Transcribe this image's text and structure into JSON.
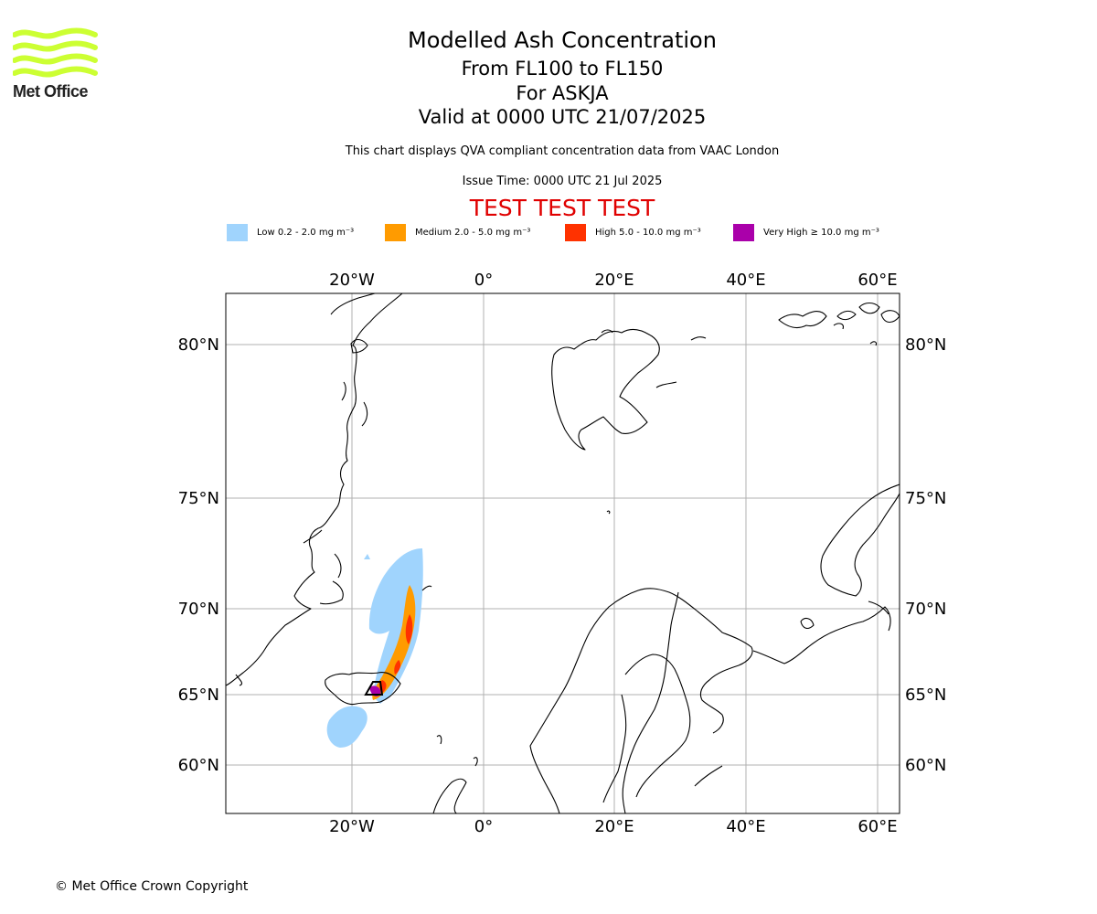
{
  "brand": {
    "name": "Met Office",
    "accent": "#ccff33"
  },
  "header": {
    "title": "Modelled Ash Concentration",
    "levels": "From FL100 to FL150",
    "volcano": "For ASKJA",
    "valid": "Valid at 0000 UTC 21/07/2025",
    "note": "This chart displays QVA compliant concentration data from VAAC London",
    "issue": "Issue Time: 0000 UTC 21 Jul 2025",
    "test_banner": "TEST TEST TEST",
    "test_color": "#e00000"
  },
  "legend": [
    {
      "label": "Low 0.2 - 2.0 mg m⁻³",
      "color": "#a0d4fd"
    },
    {
      "label": "Medium 2.0 - 5.0 mg m⁻³",
      "color": "#ff9b00"
    },
    {
      "label": "High 5.0 - 10.0 mg m⁻³",
      "color": "#ff3200"
    },
    {
      "label": "Very High ≥ 10.0 mg m⁻³",
      "color": "#aa00aa"
    }
  ],
  "map": {
    "lon_labels": [
      "20°W",
      "0°",
      "20°E",
      "40°E",
      "60°E"
    ],
    "lat_labels": [
      "80°N",
      "75°N",
      "70°N",
      "65°N",
      "60°N"
    ],
    "grid": true,
    "source_marker": "triangle"
  },
  "footer": {
    "copyright": "© Met Office Crown Copyright"
  }
}
